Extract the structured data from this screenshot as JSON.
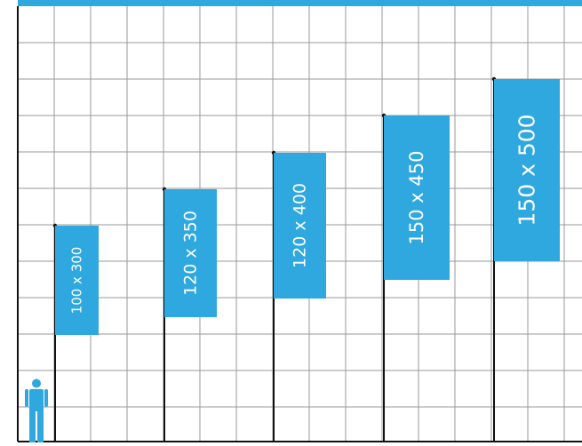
{
  "colors": {
    "accent": "#2ea8df",
    "grid": "#9a9a9a",
    "pole": "#111111",
    "background": "#ffffff"
  },
  "person_icon": "person-icon",
  "flags": [
    {
      "label": "100 x 300",
      "width_cm": 100,
      "height_cm": 300
    },
    {
      "label": "120 x 350",
      "width_cm": 120,
      "height_cm": 350
    },
    {
      "label": "120 x 400",
      "width_cm": 120,
      "height_cm": 400
    },
    {
      "label": "150 x 450",
      "width_cm": 150,
      "height_cm": 450
    },
    {
      "label": "150 x 500",
      "width_cm": 150,
      "height_cm": 500
    }
  ]
}
